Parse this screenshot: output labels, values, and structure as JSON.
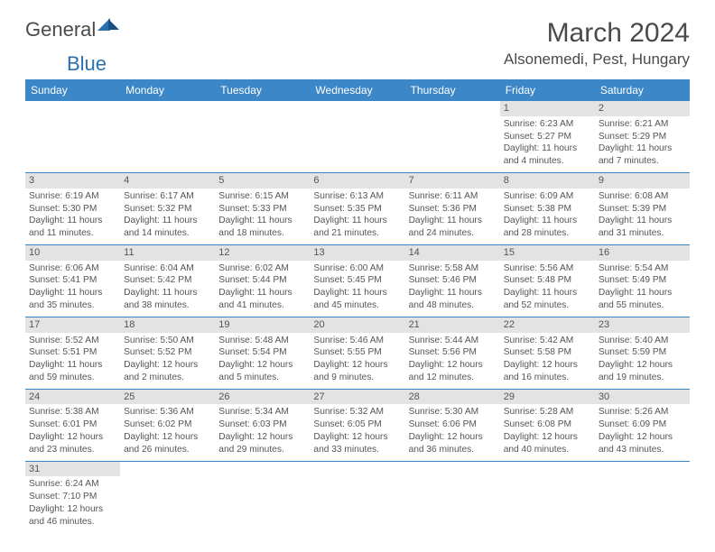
{
  "logo": {
    "general": "General",
    "blue": "Blue"
  },
  "title": "March 2024",
  "location": "Alsonemedi, Pest, Hungary",
  "headers": [
    "Sunday",
    "Monday",
    "Tuesday",
    "Wednesday",
    "Thursday",
    "Friday",
    "Saturday"
  ],
  "colors": {
    "header_bg": "#3b87c8",
    "header_fg": "#ffffff",
    "daynum_bg": "#e3e3e3",
    "border": "#3b87c8",
    "text": "#555555"
  },
  "weeks": [
    [
      {
        "day": "",
        "sunrise": "",
        "sunset": "",
        "daylight": ""
      },
      {
        "day": "",
        "sunrise": "",
        "sunset": "",
        "daylight": ""
      },
      {
        "day": "",
        "sunrise": "",
        "sunset": "",
        "daylight": ""
      },
      {
        "day": "",
        "sunrise": "",
        "sunset": "",
        "daylight": ""
      },
      {
        "day": "",
        "sunrise": "",
        "sunset": "",
        "daylight": ""
      },
      {
        "day": "1",
        "sunrise": "Sunrise: 6:23 AM",
        "sunset": "Sunset: 5:27 PM",
        "daylight": "Daylight: 11 hours and 4 minutes."
      },
      {
        "day": "2",
        "sunrise": "Sunrise: 6:21 AM",
        "sunset": "Sunset: 5:29 PM",
        "daylight": "Daylight: 11 hours and 7 minutes."
      }
    ],
    [
      {
        "day": "3",
        "sunrise": "Sunrise: 6:19 AM",
        "sunset": "Sunset: 5:30 PM",
        "daylight": "Daylight: 11 hours and 11 minutes."
      },
      {
        "day": "4",
        "sunrise": "Sunrise: 6:17 AM",
        "sunset": "Sunset: 5:32 PM",
        "daylight": "Daylight: 11 hours and 14 minutes."
      },
      {
        "day": "5",
        "sunrise": "Sunrise: 6:15 AM",
        "sunset": "Sunset: 5:33 PM",
        "daylight": "Daylight: 11 hours and 18 minutes."
      },
      {
        "day": "6",
        "sunrise": "Sunrise: 6:13 AM",
        "sunset": "Sunset: 5:35 PM",
        "daylight": "Daylight: 11 hours and 21 minutes."
      },
      {
        "day": "7",
        "sunrise": "Sunrise: 6:11 AM",
        "sunset": "Sunset: 5:36 PM",
        "daylight": "Daylight: 11 hours and 24 minutes."
      },
      {
        "day": "8",
        "sunrise": "Sunrise: 6:09 AM",
        "sunset": "Sunset: 5:38 PM",
        "daylight": "Daylight: 11 hours and 28 minutes."
      },
      {
        "day": "9",
        "sunrise": "Sunrise: 6:08 AM",
        "sunset": "Sunset: 5:39 PM",
        "daylight": "Daylight: 11 hours and 31 minutes."
      }
    ],
    [
      {
        "day": "10",
        "sunrise": "Sunrise: 6:06 AM",
        "sunset": "Sunset: 5:41 PM",
        "daylight": "Daylight: 11 hours and 35 minutes."
      },
      {
        "day": "11",
        "sunrise": "Sunrise: 6:04 AM",
        "sunset": "Sunset: 5:42 PM",
        "daylight": "Daylight: 11 hours and 38 minutes."
      },
      {
        "day": "12",
        "sunrise": "Sunrise: 6:02 AM",
        "sunset": "Sunset: 5:44 PM",
        "daylight": "Daylight: 11 hours and 41 minutes."
      },
      {
        "day": "13",
        "sunrise": "Sunrise: 6:00 AM",
        "sunset": "Sunset: 5:45 PM",
        "daylight": "Daylight: 11 hours and 45 minutes."
      },
      {
        "day": "14",
        "sunrise": "Sunrise: 5:58 AM",
        "sunset": "Sunset: 5:46 PM",
        "daylight": "Daylight: 11 hours and 48 minutes."
      },
      {
        "day": "15",
        "sunrise": "Sunrise: 5:56 AM",
        "sunset": "Sunset: 5:48 PM",
        "daylight": "Daylight: 11 hours and 52 minutes."
      },
      {
        "day": "16",
        "sunrise": "Sunrise: 5:54 AM",
        "sunset": "Sunset: 5:49 PM",
        "daylight": "Daylight: 11 hours and 55 minutes."
      }
    ],
    [
      {
        "day": "17",
        "sunrise": "Sunrise: 5:52 AM",
        "sunset": "Sunset: 5:51 PM",
        "daylight": "Daylight: 11 hours and 59 minutes."
      },
      {
        "day": "18",
        "sunrise": "Sunrise: 5:50 AM",
        "sunset": "Sunset: 5:52 PM",
        "daylight": "Daylight: 12 hours and 2 minutes."
      },
      {
        "day": "19",
        "sunrise": "Sunrise: 5:48 AM",
        "sunset": "Sunset: 5:54 PM",
        "daylight": "Daylight: 12 hours and 5 minutes."
      },
      {
        "day": "20",
        "sunrise": "Sunrise: 5:46 AM",
        "sunset": "Sunset: 5:55 PM",
        "daylight": "Daylight: 12 hours and 9 minutes."
      },
      {
        "day": "21",
        "sunrise": "Sunrise: 5:44 AM",
        "sunset": "Sunset: 5:56 PM",
        "daylight": "Daylight: 12 hours and 12 minutes."
      },
      {
        "day": "22",
        "sunrise": "Sunrise: 5:42 AM",
        "sunset": "Sunset: 5:58 PM",
        "daylight": "Daylight: 12 hours and 16 minutes."
      },
      {
        "day": "23",
        "sunrise": "Sunrise: 5:40 AM",
        "sunset": "Sunset: 5:59 PM",
        "daylight": "Daylight: 12 hours and 19 minutes."
      }
    ],
    [
      {
        "day": "24",
        "sunrise": "Sunrise: 5:38 AM",
        "sunset": "Sunset: 6:01 PM",
        "daylight": "Daylight: 12 hours and 23 minutes."
      },
      {
        "day": "25",
        "sunrise": "Sunrise: 5:36 AM",
        "sunset": "Sunset: 6:02 PM",
        "daylight": "Daylight: 12 hours and 26 minutes."
      },
      {
        "day": "26",
        "sunrise": "Sunrise: 5:34 AM",
        "sunset": "Sunset: 6:03 PM",
        "daylight": "Daylight: 12 hours and 29 minutes."
      },
      {
        "day": "27",
        "sunrise": "Sunrise: 5:32 AM",
        "sunset": "Sunset: 6:05 PM",
        "daylight": "Daylight: 12 hours and 33 minutes."
      },
      {
        "day": "28",
        "sunrise": "Sunrise: 5:30 AM",
        "sunset": "Sunset: 6:06 PM",
        "daylight": "Daylight: 12 hours and 36 minutes."
      },
      {
        "day": "29",
        "sunrise": "Sunrise: 5:28 AM",
        "sunset": "Sunset: 6:08 PM",
        "daylight": "Daylight: 12 hours and 40 minutes."
      },
      {
        "day": "30",
        "sunrise": "Sunrise: 5:26 AM",
        "sunset": "Sunset: 6:09 PM",
        "daylight": "Daylight: 12 hours and 43 minutes."
      }
    ],
    [
      {
        "day": "31",
        "sunrise": "Sunrise: 6:24 AM",
        "sunset": "Sunset: 7:10 PM",
        "daylight": "Daylight: 12 hours and 46 minutes."
      },
      {
        "day": "",
        "sunrise": "",
        "sunset": "",
        "daylight": ""
      },
      {
        "day": "",
        "sunrise": "",
        "sunset": "",
        "daylight": ""
      },
      {
        "day": "",
        "sunrise": "",
        "sunset": "",
        "daylight": ""
      },
      {
        "day": "",
        "sunrise": "",
        "sunset": "",
        "daylight": ""
      },
      {
        "day": "",
        "sunrise": "",
        "sunset": "",
        "daylight": ""
      },
      {
        "day": "",
        "sunrise": "",
        "sunset": "",
        "daylight": ""
      }
    ]
  ]
}
